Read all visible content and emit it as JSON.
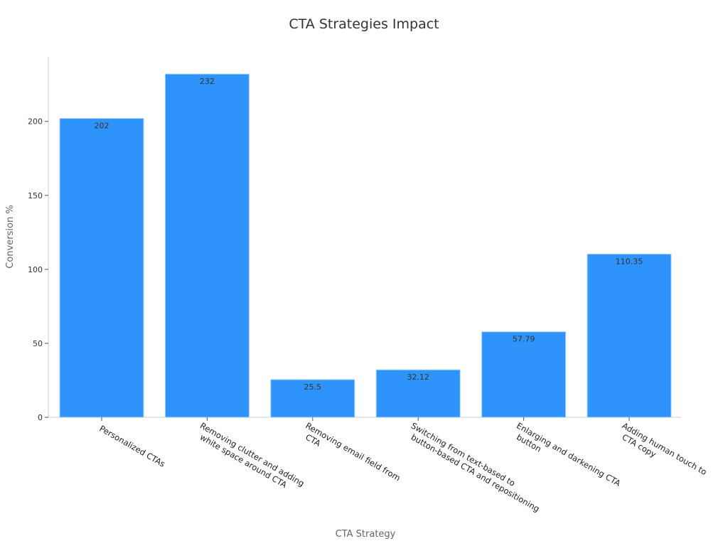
{
  "chart_data": {
    "type": "bar",
    "title": "CTA Strategies Impact",
    "xlabel": "CTA Strategy",
    "ylabel": "Conversion %",
    "categories": [
      [
        "Personalized CTAs"
      ],
      [
        "Removing clutter and adding",
        "white space around CTA"
      ],
      [
        "Removing email field from",
        "CTA"
      ],
      [
        "Switching from text-based to",
        "button-based CTA and repositioning"
      ],
      [
        "Enlarging and darkening CTA",
        "button"
      ],
      [
        "Adding human touch to",
        "CTA copy"
      ]
    ],
    "values": [
      202,
      232,
      25.5,
      32.12,
      57.79,
      110.35
    ],
    "value_labels": [
      "202",
      "232",
      "25.5",
      "32.12",
      "57.79",
      "110.35"
    ],
    "yticks": [
      0,
      50,
      100,
      150,
      200
    ],
    "ylim": [
      0,
      243.6
    ],
    "grid": false,
    "bar_color": "#2e93fa",
    "bar_edge_color": "#a9d2fc"
  }
}
